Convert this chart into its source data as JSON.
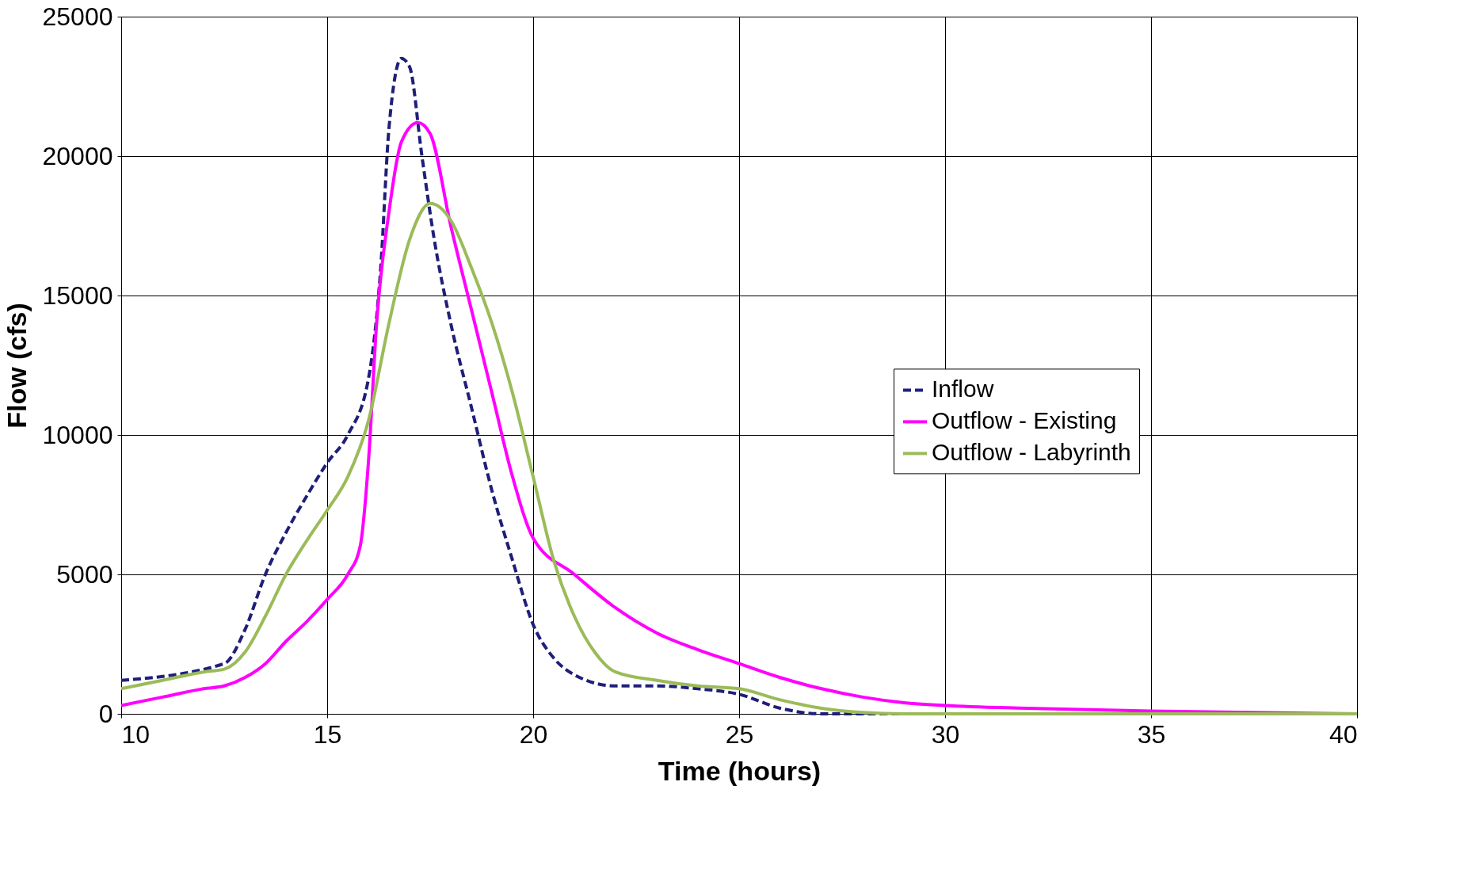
{
  "chart_data": {
    "type": "line",
    "xlabel": "Time (hours)",
    "ylabel": "Flow (cfs)",
    "xlim": [
      10,
      40
    ],
    "xticks": [
      10,
      15,
      20,
      25,
      30,
      35,
      40
    ],
    "ylim": [
      0,
      25000
    ],
    "yticks": [
      0,
      5000,
      10000,
      15000,
      20000,
      25000
    ],
    "grid": true,
    "legend": "right",
    "marker": "none",
    "series": [
      {
        "name": "Inflow",
        "color": "#1f1f7a",
        "line_style": "dashed",
        "x": [
          10,
          12.5,
          13,
          13.5,
          14,
          14.5,
          15,
          15.5,
          16,
          16.3,
          16.5,
          16.8,
          17,
          17.3,
          17.6,
          18,
          18.5,
          19,
          19.5,
          20,
          20.5,
          21,
          22,
          23,
          24,
          25,
          26,
          27,
          40
        ],
        "values": [
          1200,
          1800,
          3000,
          5000,
          6500,
          7800,
          9000,
          10000,
          12000,
          16000,
          21000,
          23500,
          23200,
          20000,
          17000,
          14000,
          11000,
          8000,
          5500,
          3200,
          2000,
          1400,
          1000,
          1000,
          900,
          700,
          200,
          0,
          0
        ]
      },
      {
        "name": "Outflow - Existing",
        "color": "#ff00ff",
        "line_style": "solid",
        "x": [
          10,
          11,
          12,
          12.5,
          13,
          13.5,
          14,
          14.5,
          15,
          15.5,
          15.8,
          16,
          16.2,
          16.5,
          16.8,
          17.2,
          17.5,
          18,
          18.5,
          19,
          19.5,
          20,
          21,
          22,
          23,
          24,
          25,
          26,
          27,
          28,
          29,
          30,
          32,
          35,
          40
        ],
        "values": [
          300,
          600,
          900,
          1000,
          1300,
          1800,
          2600,
          3300,
          4100,
          5000,
          6000,
          9000,
          14000,
          18000,
          20500,
          21200,
          20800,
          17500,
          14500,
          11500,
          8500,
          6300,
          5000,
          3800,
          2900,
          2300,
          1800,
          1300,
          900,
          600,
          400,
          300,
          200,
          100,
          0
        ]
      },
      {
        "name": "Outflow - Labyrinth",
        "color": "#9bbb59",
        "line_style": "solid",
        "x": [
          10,
          11,
          12,
          12.5,
          13,
          13.5,
          14,
          14.5,
          15,
          15.5,
          16,
          16.5,
          17,
          17.5,
          18,
          18.5,
          19,
          19.5,
          20,
          20.5,
          21,
          21.5,
          22,
          23,
          24,
          25,
          26,
          27,
          28,
          29,
          40
        ],
        "values": [
          900,
          1200,
          1500,
          1600,
          2200,
          3500,
          5000,
          6200,
          7300,
          8500,
          10500,
          14000,
          17000,
          18300,
          17700,
          16000,
          14000,
          11500,
          8500,
          5500,
          3500,
          2200,
          1500,
          1200,
          1000,
          900,
          500,
          200,
          50,
          0,
          0
        ]
      }
    ]
  }
}
